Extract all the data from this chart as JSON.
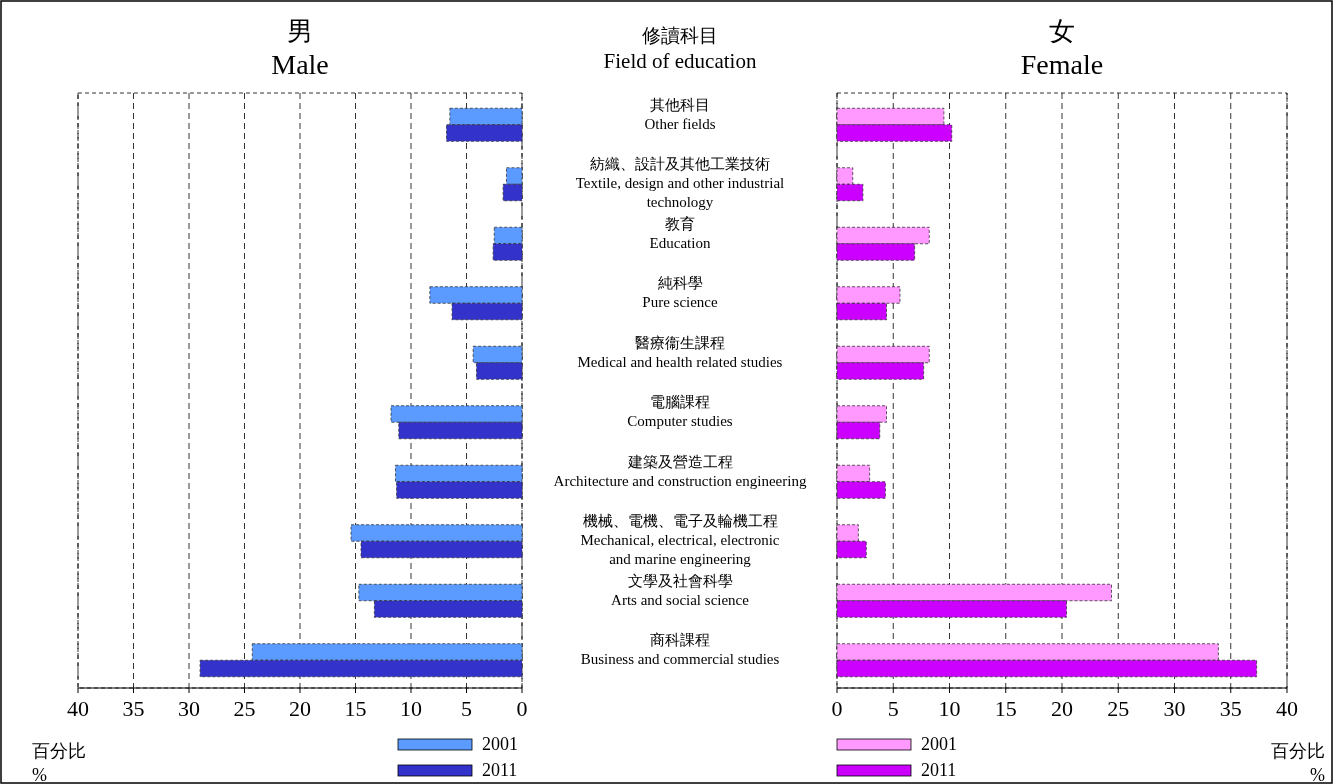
{
  "chart_data": [
    {
      "type": "bar",
      "orientation": "horizontal",
      "title": "男\nMale",
      "xlabel": "百分比\n%",
      "annotations": [
        "修讀科目\nField of education"
      ],
      "categories": [
        "其他科目\nOther fields",
        "紡織、設計及其他工業技術\nTextile, design and other industrial\ntechnology",
        "教育\nEducation",
        "純科學\nPure science",
        "醫療衞生課程\nMedical and health related studies",
        "電腦課程\nComputer studies",
        "建築及營造工程\nArchitecture and construction engineering",
        "機械、電機、電子及輪機工程\nMechanical, electrical, electronic\nand marine engineering",
        "文學及社會科學\nArts and social science",
        "商科課程\nBusiness and commercial studies"
      ],
      "series": [
        {
          "name": "2001",
          "color": "#5b9bff",
          "values": [
            6.5,
            1.4,
            2.5,
            8.3,
            4.4,
            11.8,
            11.4,
            15.4,
            14.7,
            24.3
          ]
        },
        {
          "name": "2011",
          "color": "#3333cc",
          "values": [
            6.8,
            1.7,
            2.6,
            6.3,
            4.1,
            11.1,
            11.3,
            14.5,
            13.3,
            29.0
          ]
        }
      ],
      "xlim": [
        40,
        0
      ],
      "xticks": [
        0,
        5,
        10,
        15,
        20,
        25,
        30,
        35,
        40
      ],
      "grid": "x",
      "legend": "bottom"
    },
    {
      "type": "bar",
      "orientation": "horizontal",
      "title": "女\nFemale",
      "xlabel": "百分比\n%",
      "categories": [
        null,
        null,
        null,
        null,
        null,
        null,
        null,
        null,
        null,
        null
      ],
      "series": [
        {
          "name": "2001",
          "color": "#ff99ff",
          "values": [
            9.5,
            1.4,
            8.2,
            5.6,
            8.2,
            4.4,
            2.9,
            1.9,
            24.4,
            33.9
          ]
        },
        {
          "name": "2011",
          "color": "#cc00ff",
          "values": [
            10.2,
            2.3,
            6.9,
            4.4,
            7.7,
            3.8,
            4.3,
            2.6,
            20.4,
            37.3
          ]
        }
      ],
      "xlim": [
        0,
        40
      ],
      "xticks": [
        0,
        5,
        10,
        15,
        20,
        25,
        30,
        35,
        40
      ],
      "grid": "x",
      "legend": "bottom"
    }
  ]
}
